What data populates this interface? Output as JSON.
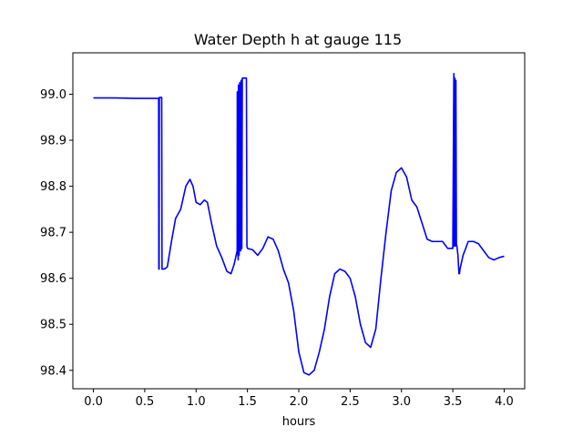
{
  "chart_data": {
    "type": "line",
    "title": "Water Depth h at gauge 115",
    "xlabel": "hours",
    "ylabel": "",
    "xlim": [
      -0.2,
      4.2
    ],
    "ylim": [
      98.36,
      99.09
    ],
    "xticks": [
      0.0,
      0.5,
      1.0,
      1.5,
      2.0,
      2.5,
      3.0,
      3.5,
      4.0
    ],
    "xtick_labels": [
      "0.0",
      "0.5",
      "1.0",
      "1.5",
      "2.0",
      "2.5",
      "3.0",
      "3.5",
      "4.0"
    ],
    "yticks": [
      98.4,
      98.5,
      98.6,
      98.7,
      98.8,
      98.9,
      99.0
    ],
    "ytick_labels": [
      "98.4",
      "98.5",
      "98.6",
      "98.7",
      "98.8",
      "98.9",
      "99.0"
    ],
    "grid": false,
    "series": [
      {
        "color": "#0000ff",
        "x": [
          0.0,
          0.2,
          0.4,
          0.6,
          0.635,
          0.637,
          0.64,
          0.642,
          0.645,
          0.66,
          0.665,
          0.668,
          0.67,
          0.68,
          0.7,
          0.72,
          0.76,
          0.8,
          0.85,
          0.9,
          0.94,
          0.97,
          1.0,
          1.04,
          1.08,
          1.11,
          1.15,
          1.2,
          1.25,
          1.3,
          1.34,
          1.37,
          1.39,
          1.4,
          1.401,
          1.405,
          1.41,
          1.412,
          1.418,
          1.42,
          1.425,
          1.428,
          1.435,
          1.438,
          1.445,
          1.45,
          1.46,
          1.48,
          1.49,
          1.495,
          1.5,
          1.55,
          1.6,
          1.65,
          1.7,
          1.75,
          1.8,
          1.85,
          1.9,
          1.95,
          2.0,
          2.05,
          2.1,
          2.15,
          2.2,
          2.25,
          2.3,
          2.35,
          2.4,
          2.45,
          2.5,
          2.55,
          2.6,
          2.65,
          2.7,
          2.75,
          2.8,
          2.85,
          2.9,
          2.95,
          3.0,
          3.05,
          3.1,
          3.15,
          3.2,
          3.25,
          3.3,
          3.35,
          3.4,
          3.45,
          3.5,
          3.51,
          3.512,
          3.52,
          3.525,
          3.53,
          3.535,
          3.54,
          3.545,
          3.55,
          3.555,
          3.56,
          3.565,
          3.57,
          3.6,
          3.65,
          3.7,
          3.75,
          3.8,
          3.85,
          3.9,
          3.95,
          4.0
        ],
        "y": [
          98.992,
          98.992,
          98.991,
          98.991,
          98.991,
          98.62,
          98.62,
          98.993,
          98.993,
          98.993,
          98.993,
          98.62,
          98.62,
          98.62,
          98.621,
          98.625,
          98.68,
          98.73,
          98.75,
          98.8,
          98.815,
          98.8,
          98.765,
          98.76,
          98.77,
          98.765,
          98.72,
          98.67,
          98.645,
          98.615,
          98.61,
          98.63,
          98.65,
          98.66,
          99.005,
          98.66,
          98.64,
          99.02,
          98.65,
          98.66,
          99.025,
          98.66,
          98.66,
          99.03,
          98.665,
          99.035,
          99.035,
          99.035,
          99.035,
          98.67,
          98.665,
          98.662,
          98.65,
          98.665,
          98.69,
          98.685,
          98.66,
          98.62,
          98.59,
          98.53,
          98.44,
          98.395,
          98.39,
          98.4,
          98.44,
          98.49,
          98.56,
          98.61,
          98.62,
          98.615,
          98.6,
          98.56,
          98.5,
          98.46,
          98.45,
          98.49,
          98.6,
          98.7,
          98.79,
          98.83,
          98.84,
          98.82,
          98.77,
          98.755,
          98.72,
          98.685,
          98.68,
          98.68,
          98.68,
          98.665,
          98.665,
          99.045,
          98.67,
          99.035,
          98.67,
          99.03,
          98.675,
          98.67,
          98.66,
          98.65,
          98.63,
          98.61,
          98.61,
          98.62,
          98.65,
          98.68,
          98.68,
          98.675,
          98.66,
          98.645,
          98.64,
          98.645,
          98.648
        ]
      }
    ]
  }
}
